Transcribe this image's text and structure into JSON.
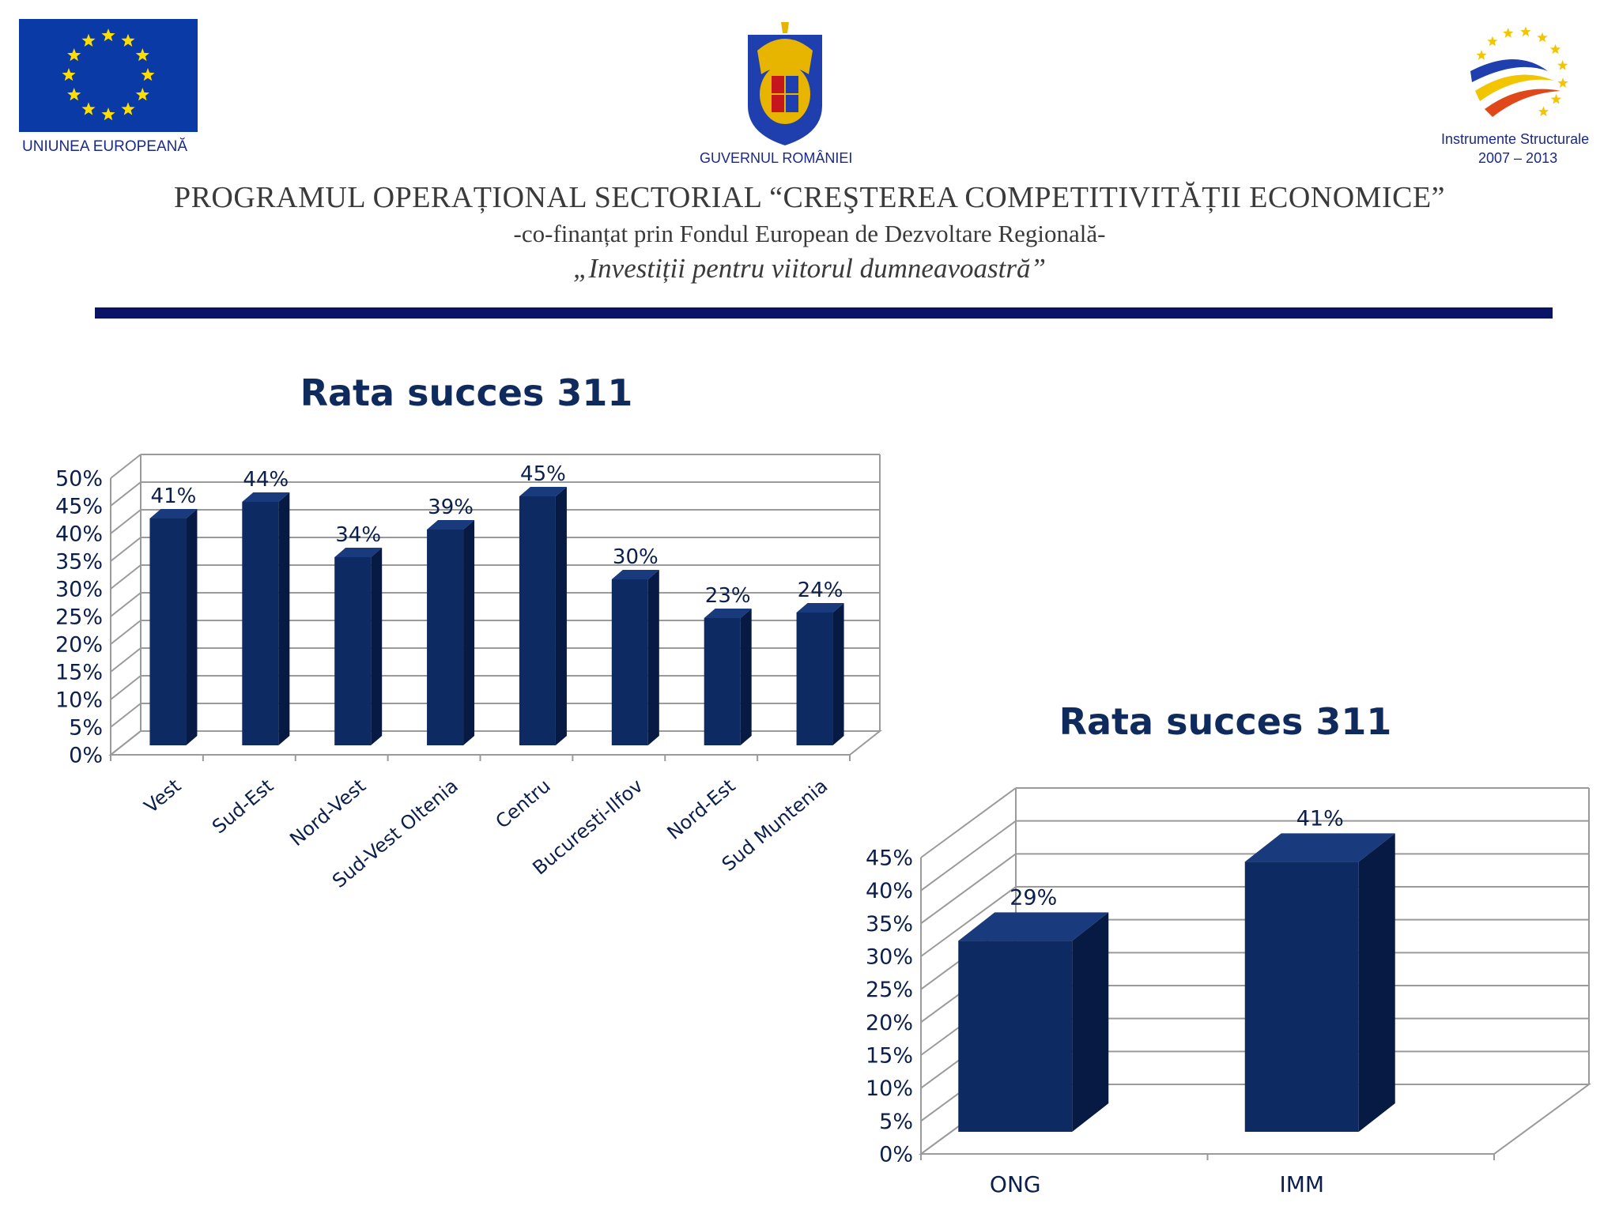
{
  "header": {
    "eu_caption": "UNIUNEA EUROPEANĂ",
    "gov_caption": "GUVERNUL ROMÂNIEI",
    "is_caption_line1": "Instrumente Structurale",
    "is_caption_line2": "2007 – 2013",
    "program_title": "PROGRAMUL OPERAȚIONAL SECTORIAL “CREŞTEREA COMPETITIVITĂȚII ECONOMICE”",
    "cofinance": "-co-finanțat prin Fondul European de Dezvoltare Regională-",
    "motto": "„Investiții pentru viitorul dumneavoastră”"
  },
  "colors": {
    "bar_front": "#0e2a62",
    "bar_side": "#061a44",
    "bar_top": "#1a3a7e",
    "rule": "#0b1366",
    "grid": "#9a9a9a"
  },
  "chart_data": [
    {
      "type": "bar",
      "title": "Rata succes 311",
      "categories": [
        "Vest",
        "Sud-Est",
        "Nord-Vest",
        "Sud-Vest Oltenia",
        "Centru",
        "Bucuresti-Ilfov",
        "Nord-Est",
        "Sud Muntenia"
      ],
      "values": [
        41,
        44,
        34,
        39,
        45,
        30,
        23,
        24
      ],
      "data_labels": [
        "41%",
        "44%",
        "34%",
        "39%",
        "45%",
        "30%",
        "23%",
        "24%"
      ],
      "y_ticks": [
        "0%",
        "5%",
        "10%",
        "15%",
        "20%",
        "25%",
        "30%",
        "35%",
        "40%",
        "45%",
        "50%"
      ],
      "ylim": [
        0,
        50
      ],
      "grid": true,
      "style": "3d"
    },
    {
      "type": "bar",
      "title": "Rata succes 311",
      "categories": [
        "ONG",
        "IMM"
      ],
      "values": [
        29,
        41
      ],
      "data_labels": [
        "29%",
        "41%"
      ],
      "y_ticks": [
        "0%",
        "5%",
        "10%",
        "15%",
        "20%",
        "25%",
        "30%",
        "35%",
        "40%",
        "45%"
      ],
      "ylim": [
        0,
        45
      ],
      "grid": true,
      "style": "3d"
    }
  ]
}
